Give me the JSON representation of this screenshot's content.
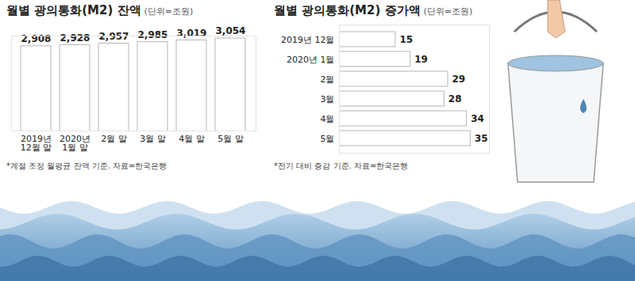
{
  "chart_data": [
    {
      "type": "bar",
      "title": "월별 광의통화(M2) 잔액",
      "subtitle": "(단위=조원)",
      "annotations": [
        "*계절 조정 월평균 잔액 기준. 자료=한국은행"
      ],
      "categories": [
        "2019년\n12월 말",
        "2020년\n1월 말",
        "2월 말",
        "3월 말",
        "4월 말",
        "5월 말"
      ],
      "values": [
        2908,
        2928,
        2957,
        2985,
        3019,
        3054
      ],
      "value_labels": [
        "2,908",
        "2,928",
        "2,957",
        "2,985",
        "3,019",
        "3,054"
      ],
      "color": "#ffffff",
      "ylim": [
        1300,
        3100
      ],
      "data_labels": true,
      "tick_labels": "x"
    },
    {
      "type": "bar",
      "title": "월별 광의통화(M2) 증가액",
      "subtitle": "(단위=조원)",
      "annotations": [
        "*전기 대비 증감 기준. 자료=한국은행"
      ],
      "orientation": "horizontal",
      "categories": [
        "2019년 12월",
        "2020년 1월",
        "2월",
        "3월",
        "4월",
        "5월"
      ],
      "values": [
        15,
        19,
        29,
        28,
        34,
        35
      ],
      "color": "#ffffff",
      "xlim": [
        0,
        40
      ],
      "data_labels": true,
      "tick_labels": "y"
    }
  ]
}
